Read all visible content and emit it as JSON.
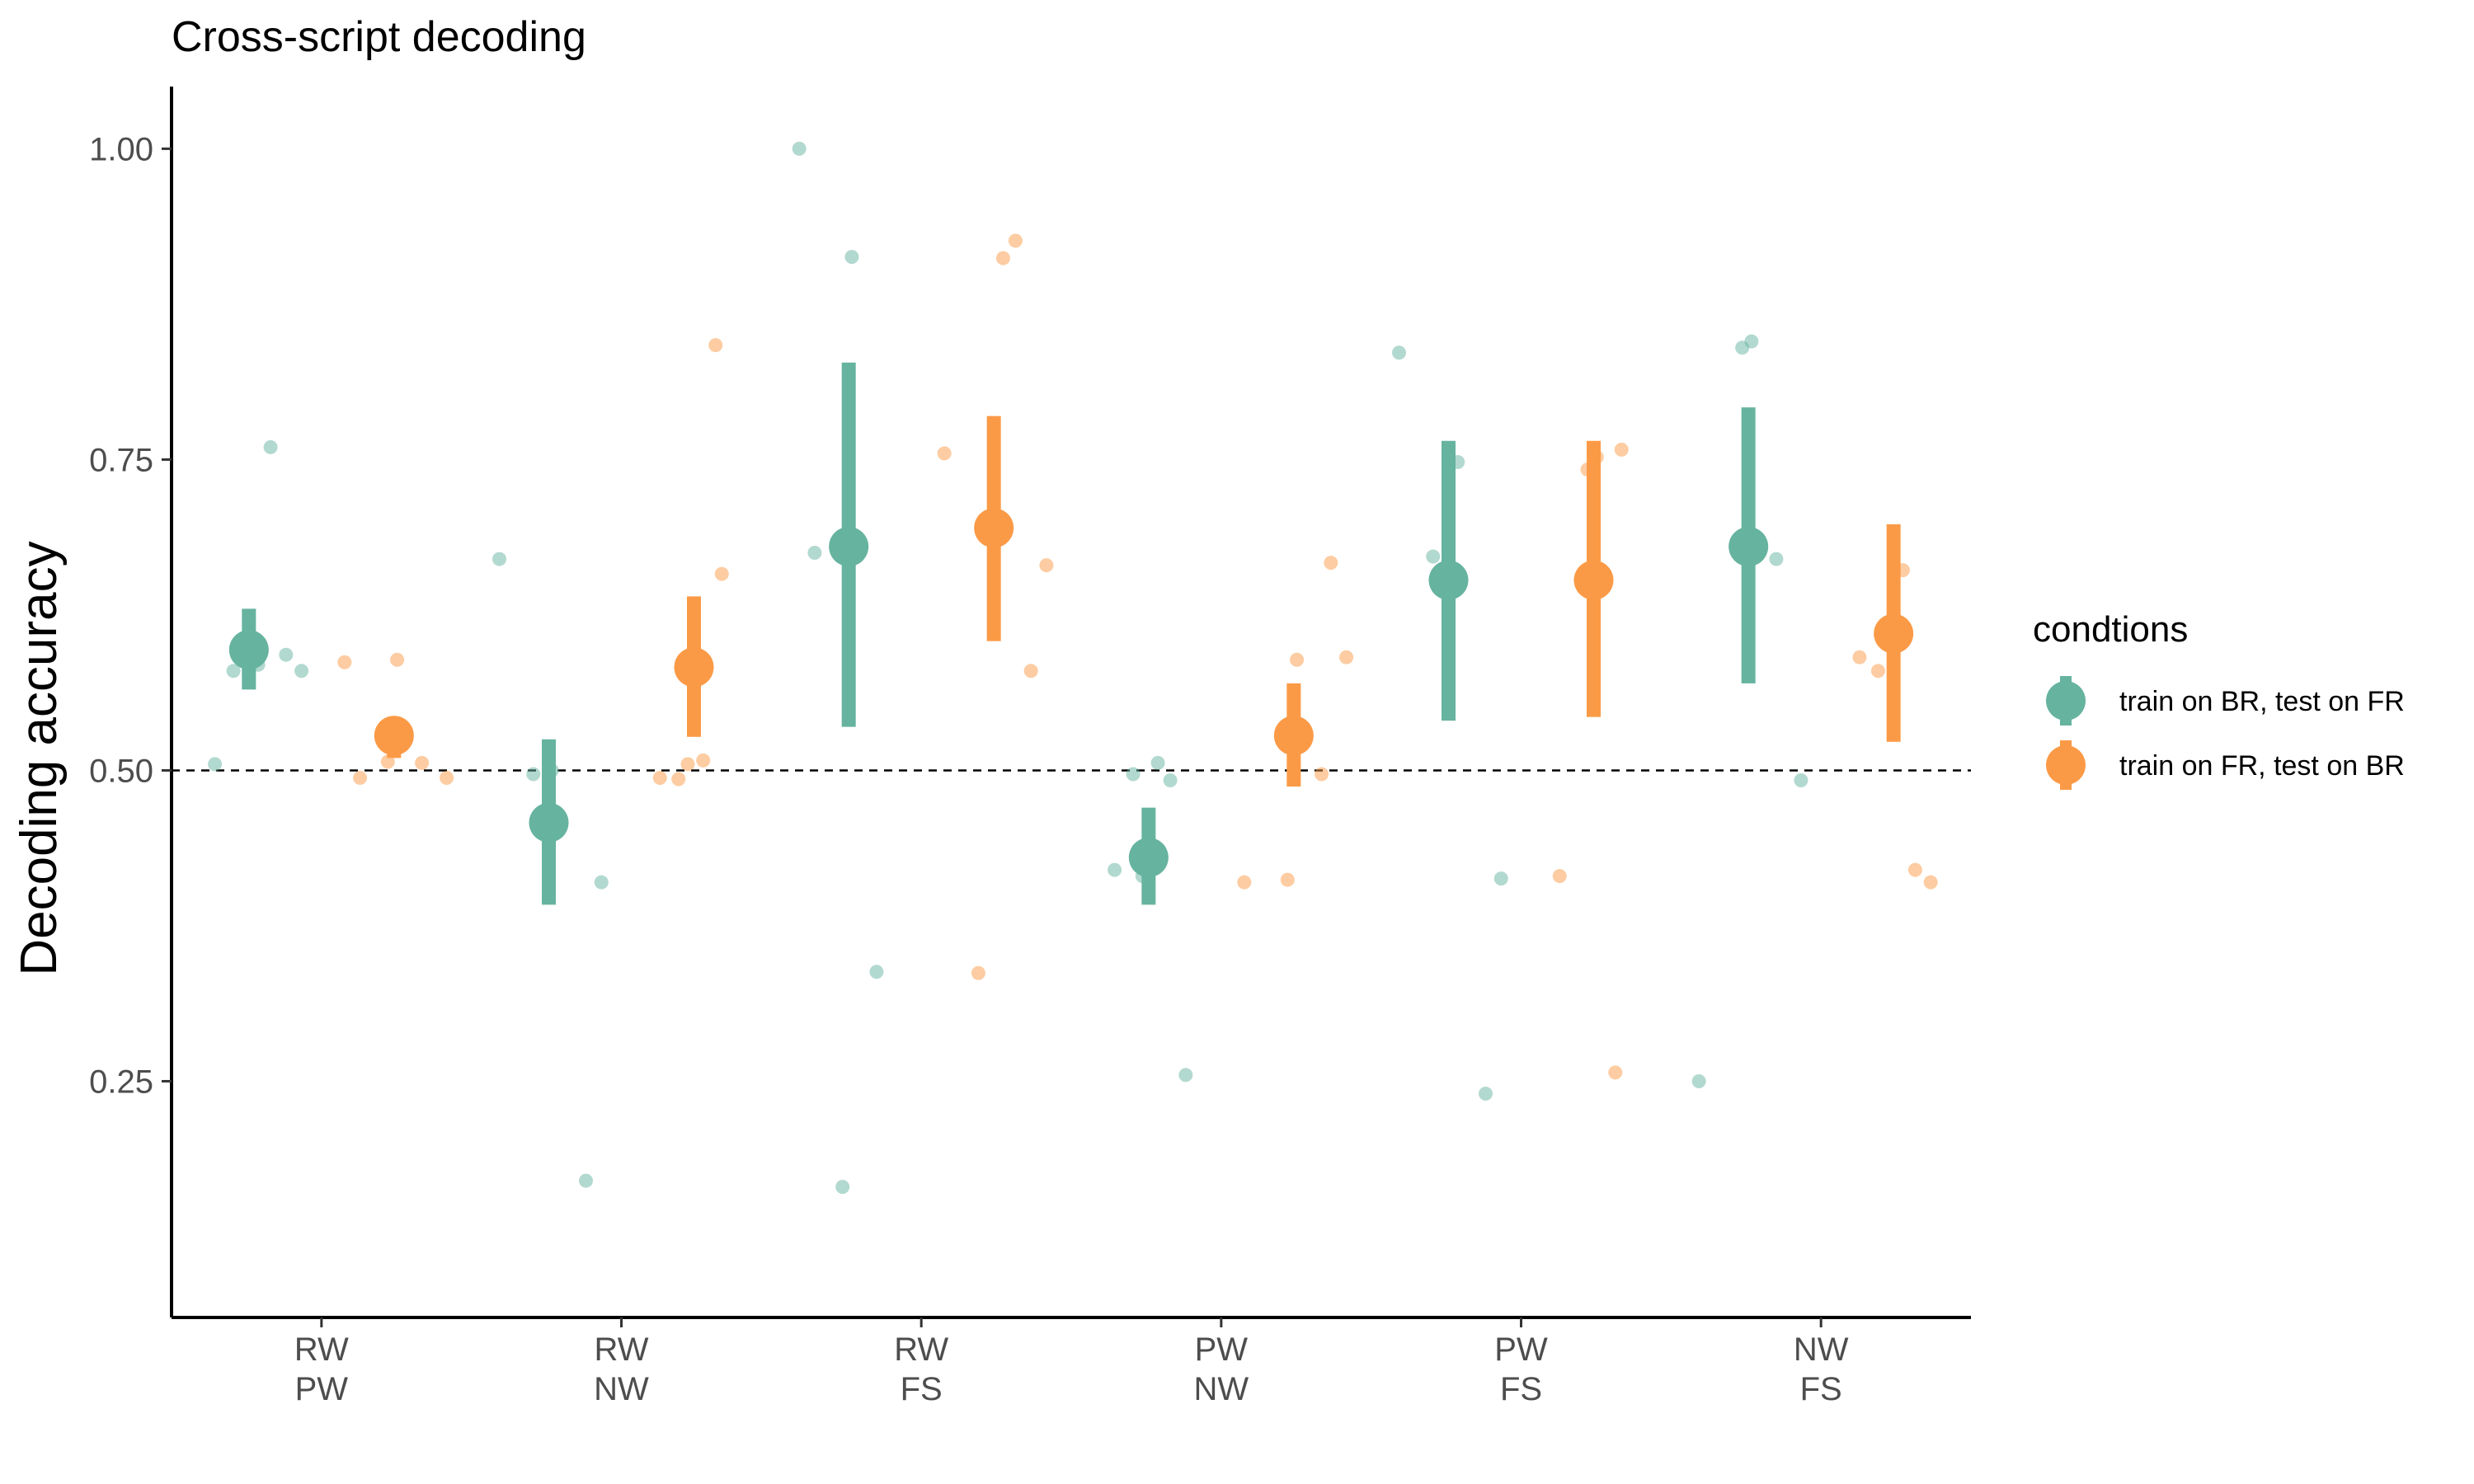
{
  "chart_data": {
    "type": "scatter",
    "title": "Cross-script decoding",
    "ylabel": "Decoding accuracy",
    "xlabel": "",
    "ylim": [
      0.06,
      1.05
    ],
    "yticks": [
      0.25,
      0.5,
      0.75,
      1.0
    ],
    "ytick_labels": [
      "0.25",
      "0.50",
      "0.75",
      "1.00"
    ],
    "reference_line": 0.5,
    "grid": false,
    "legend_position": "right",
    "legend_title": "condtions",
    "categories": [
      {
        "line1": "RW",
        "line2": "PW"
      },
      {
        "line1": "RW",
        "line2": "NW"
      },
      {
        "line1": "RW",
        "line2": "FS"
      },
      {
        "line1": "PW",
        "line2": "NW"
      },
      {
        "line1": "PW",
        "line2": "FS"
      },
      {
        "line1": "NW",
        "line2": "FS"
      }
    ],
    "series": [
      {
        "name": "train on BR, test on FR",
        "color": "#66b39f",
        "mean": [
          0.597,
          0.458,
          0.68,
          0.43,
          0.653,
          0.68
        ],
        "ci_low": [
          0.565,
          0.392,
          0.535,
          0.392,
          0.54,
          0.57
        ],
        "ci_high": [
          0.63,
          0.525,
          0.828,
          0.47,
          0.765,
          0.792
        ],
        "points": [
          [
            0.505,
            0.76,
            0.585,
            0.58,
            0.593,
            0.58
          ],
          [
            0.497,
            0.17,
            0.41,
            0.67,
            0.5
          ],
          [
            1.0,
            0.913,
            0.338,
            0.165,
            0.675
          ],
          [
            0.415,
            0.42,
            0.492,
            0.506,
            0.497,
            0.255
          ],
          [
            0.748,
            0.672,
            0.24,
            0.413,
            0.836
          ],
          [
            0.492,
            0.25,
            0.845,
            0.67,
            0.84
          ]
        ]
      },
      {
        "name": "train on FR, test on BR",
        "color": "#fb9a46",
        "mean": [
          0.528,
          0.583,
          0.695,
          0.528,
          0.653,
          0.61
        ],
        "ci_low": [
          0.51,
          0.527,
          0.604,
          0.487,
          0.543,
          0.523
        ],
        "ci_high": [
          0.543,
          0.64,
          0.785,
          0.57,
          0.765,
          0.698
        ],
        "points": [
          [
            0.494,
            0.587,
            0.589,
            0.506,
            0.507,
            0.494
          ],
          [
            0.658,
            0.505,
            0.494,
            0.842,
            0.508,
            0.493
          ],
          [
            0.926,
            0.912,
            0.337,
            0.58,
            0.665,
            0.755
          ],
          [
            0.667,
            0.591,
            0.41,
            0.589,
            0.497,
            0.412
          ],
          [
            0.752,
            0.758,
            0.742,
            0.415,
            0.257
          ],
          [
            0.591,
            0.42,
            0.661,
            0.58,
            0.41
          ]
        ]
      }
    ]
  }
}
